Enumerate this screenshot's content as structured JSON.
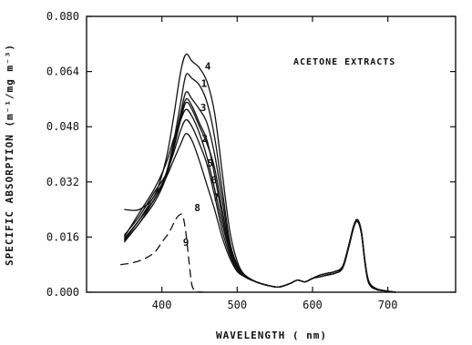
{
  "chart_data": {
    "type": "line",
    "title": "",
    "xlabel": "WAVELENGTH ( nm)",
    "ylabel": "SPECIFIC ABSORPTION (m⁻¹/mg m⁻³)",
    "annotation": "ACETONE EXTRACTS",
    "xlim": [
      300,
      790
    ],
    "ylim": [
      0,
      0.08
    ],
    "x_ticks": [
      400,
      500,
      600,
      700
    ],
    "y_ticks": [
      "0.000",
      "0.016",
      "0.032",
      "0.048",
      "0.064",
      "0.080"
    ],
    "grid": false,
    "series": [
      {
        "name": "1",
        "style": "solid",
        "label_at": [
          452,
          0.0595
        ],
        "points": [
          [
            350,
            0.015
          ],
          [
            370,
            0.021
          ],
          [
            390,
            0.027
          ],
          [
            405,
            0.034
          ],
          [
            415,
            0.043
          ],
          [
            425,
            0.055
          ],
          [
            432,
            0.063
          ],
          [
            440,
            0.062
          ],
          [
            450,
            0.06
          ],
          [
            460,
            0.055
          ],
          [
            470,
            0.045
          ],
          [
            480,
            0.03
          ],
          [
            490,
            0.015
          ],
          [
            500,
            0.008
          ],
          [
            510,
            0.005
          ],
          [
            525,
            0.003
          ],
          [
            540,
            0.002
          ],
          [
            555,
            0.0015
          ],
          [
            570,
            0.0025
          ],
          [
            580,
            0.0035
          ],
          [
            590,
            0.003
          ],
          [
            600,
            0.004
          ],
          [
            610,
            0.0045
          ],
          [
            620,
            0.005
          ],
          [
            630,
            0.0055
          ],
          [
            640,
            0.007
          ],
          [
            648,
            0.013
          ],
          [
            655,
            0.019
          ],
          [
            660,
            0.0205
          ],
          [
            665,
            0.017
          ],
          [
            670,
            0.008
          ],
          [
            675,
            0.0025
          ],
          [
            685,
            0.0008
          ],
          [
            700,
            0.0003
          ],
          [
            710,
            0
          ]
        ]
      },
      {
        "name": "2",
        "style": "solid",
        "label_at": [
          453,
          0.0435
        ],
        "points": [
          [
            350,
            0.016
          ],
          [
            370,
            0.023
          ],
          [
            390,
            0.03
          ],
          [
            405,
            0.037
          ],
          [
            415,
            0.044
          ],
          [
            425,
            0.05
          ],
          [
            432,
            0.053
          ],
          [
            440,
            0.051
          ],
          [
            450,
            0.046
          ],
          [
            460,
            0.039
          ],
          [
            470,
            0.03
          ],
          [
            480,
            0.02
          ],
          [
            490,
            0.012
          ],
          [
            500,
            0.007
          ],
          [
            510,
            0.0045
          ],
          [
            525,
            0.003
          ],
          [
            540,
            0.002
          ],
          [
            555,
            0.0015
          ],
          [
            570,
            0.0025
          ],
          [
            580,
            0.0035
          ],
          [
            590,
            0.003
          ],
          [
            600,
            0.004
          ],
          [
            610,
            0.005
          ],
          [
            620,
            0.0055
          ],
          [
            630,
            0.006
          ],
          [
            640,
            0.0075
          ],
          [
            648,
            0.0135
          ],
          [
            655,
            0.0195
          ],
          [
            660,
            0.021
          ],
          [
            665,
            0.0175
          ],
          [
            670,
            0.0085
          ],
          [
            675,
            0.003
          ],
          [
            685,
            0.001
          ],
          [
            700,
            0.0003
          ],
          [
            710,
            0
          ]
        ]
      },
      {
        "name": "3",
        "style": "solid",
        "label_at": [
          451,
          0.0525
        ],
        "points": [
          [
            350,
            0.0145
          ],
          [
            370,
            0.02
          ],
          [
            390,
            0.026
          ],
          [
            405,
            0.033
          ],
          [
            415,
            0.042
          ],
          [
            425,
            0.052
          ],
          [
            432,
            0.058
          ],
          [
            440,
            0.056
          ],
          [
            450,
            0.053
          ],
          [
            460,
            0.049
          ],
          [
            470,
            0.04
          ],
          [
            480,
            0.027
          ],
          [
            490,
            0.014
          ],
          [
            500,
            0.0075
          ],
          [
            510,
            0.005
          ],
          [
            525,
            0.003
          ],
          [
            540,
            0.002
          ],
          [
            555,
            0.0015
          ],
          [
            570,
            0.0025
          ],
          [
            580,
            0.0035
          ],
          [
            590,
            0.003
          ],
          [
            600,
            0.004
          ],
          [
            610,
            0.0045
          ],
          [
            620,
            0.005
          ],
          [
            630,
            0.0055
          ],
          [
            640,
            0.007
          ],
          [
            648,
            0.013
          ],
          [
            655,
            0.019
          ],
          [
            660,
            0.0205
          ],
          [
            665,
            0.017
          ],
          [
            670,
            0.008
          ],
          [
            675,
            0.0025
          ],
          [
            685,
            0.0008
          ],
          [
            700,
            0.0003
          ],
          [
            710,
            0
          ]
        ]
      },
      {
        "name": "4",
        "style": "solid",
        "label_at": [
          457,
          0.0645
        ],
        "points": [
          [
            350,
            0.024
          ],
          [
            370,
            0.024
          ],
          [
            390,
            0.028
          ],
          [
            405,
            0.038
          ],
          [
            415,
            0.05
          ],
          [
            425,
            0.064
          ],
          [
            432,
            0.069
          ],
          [
            440,
            0.067
          ],
          [
            450,
            0.065
          ],
          [
            460,
            0.061
          ],
          [
            470,
            0.052
          ],
          [
            480,
            0.035
          ],
          [
            490,
            0.018
          ],
          [
            500,
            0.009
          ],
          [
            510,
            0.005
          ],
          [
            525,
            0.003
          ],
          [
            540,
            0.002
          ],
          [
            555,
            0.0015
          ],
          [
            570,
            0.0025
          ],
          [
            580,
            0.0035
          ],
          [
            590,
            0.003
          ],
          [
            600,
            0.004
          ],
          [
            610,
            0.0045
          ],
          [
            620,
            0.005
          ],
          [
            630,
            0.0055
          ],
          [
            640,
            0.007
          ],
          [
            648,
            0.013
          ],
          [
            655,
            0.019
          ],
          [
            660,
            0.0205
          ],
          [
            665,
            0.017
          ],
          [
            670,
            0.008
          ],
          [
            675,
            0.0025
          ],
          [
            685,
            0.0008
          ],
          [
            700,
            0.0003
          ],
          [
            710,
            0
          ]
        ]
      },
      {
        "name": "5",
        "style": "solid",
        "label_at": [
          460,
          0.0365
        ],
        "points": [
          [
            350,
            0.015
          ],
          [
            370,
            0.02
          ],
          [
            390,
            0.027
          ],
          [
            405,
            0.033
          ],
          [
            415,
            0.041
          ],
          [
            425,
            0.05
          ],
          [
            432,
            0.055
          ],
          [
            440,
            0.053
          ],
          [
            450,
            0.048
          ],
          [
            460,
            0.043
          ],
          [
            470,
            0.036
          ],
          [
            480,
            0.024
          ],
          [
            490,
            0.013
          ],
          [
            500,
            0.007
          ],
          [
            510,
            0.0045
          ],
          [
            525,
            0.003
          ],
          [
            540,
            0.002
          ],
          [
            555,
            0.0015
          ],
          [
            570,
            0.0025
          ],
          [
            580,
            0.0035
          ],
          [
            590,
            0.003
          ],
          [
            600,
            0.004
          ],
          [
            610,
            0.0045
          ],
          [
            620,
            0.005
          ],
          [
            630,
            0.0055
          ],
          [
            640,
            0.007
          ],
          [
            648,
            0.013
          ],
          [
            655,
            0.019
          ],
          [
            660,
            0.0205
          ],
          [
            665,
            0.017
          ],
          [
            670,
            0.008
          ],
          [
            675,
            0.0025
          ],
          [
            685,
            0.0008
          ],
          [
            700,
            0.0003
          ],
          [
            710,
            0
          ]
        ]
      },
      {
        "name": "6",
        "style": "solid",
        "label_at": [
          465,
          0.0315
        ],
        "points": [
          [
            350,
            0.0155
          ],
          [
            370,
            0.021
          ],
          [
            390,
            0.027
          ],
          [
            405,
            0.034
          ],
          [
            415,
            0.042
          ],
          [
            425,
            0.051
          ],
          [
            432,
            0.056
          ],
          [
            440,
            0.054
          ],
          [
            450,
            0.049
          ],
          [
            460,
            0.044
          ],
          [
            470,
            0.034
          ],
          [
            480,
            0.022
          ],
          [
            490,
            0.012
          ],
          [
            500,
            0.0065
          ],
          [
            510,
            0.0045
          ],
          [
            525,
            0.003
          ],
          [
            540,
            0.002
          ],
          [
            555,
            0.0015
          ],
          [
            570,
            0.0025
          ],
          [
            580,
            0.0035
          ],
          [
            590,
            0.003
          ],
          [
            600,
            0.004
          ],
          [
            610,
            0.0045
          ],
          [
            620,
            0.005
          ],
          [
            630,
            0.0055
          ],
          [
            640,
            0.007
          ],
          [
            648,
            0.013
          ],
          [
            655,
            0.019
          ],
          [
            660,
            0.0205
          ],
          [
            665,
            0.017
          ],
          [
            670,
            0.008
          ],
          [
            675,
            0.0025
          ],
          [
            685,
            0.0008
          ],
          [
            700,
            0.0003
          ],
          [
            710,
            0
          ]
        ]
      },
      {
        "name": "7",
        "style": "solid",
        "label_at": [
          468,
          0.0265
        ],
        "points": [
          [
            350,
            0.0165
          ],
          [
            370,
            0.022
          ],
          [
            390,
            0.029
          ],
          [
            405,
            0.034
          ],
          [
            415,
            0.04
          ],
          [
            425,
            0.047
          ],
          [
            432,
            0.05
          ],
          [
            440,
            0.048
          ],
          [
            450,
            0.043
          ],
          [
            460,
            0.037
          ],
          [
            470,
            0.028
          ],
          [
            480,
            0.018
          ],
          [
            490,
            0.011
          ],
          [
            500,
            0.0065
          ],
          [
            510,
            0.0045
          ],
          [
            525,
            0.003
          ],
          [
            540,
            0.002
          ],
          [
            555,
            0.0015
          ],
          [
            570,
            0.0025
          ],
          [
            580,
            0.0035
          ],
          [
            590,
            0.003
          ],
          [
            600,
            0.004
          ],
          [
            610,
            0.005
          ],
          [
            620,
            0.0055
          ],
          [
            630,
            0.006
          ],
          [
            640,
            0.0075
          ],
          [
            648,
            0.0135
          ],
          [
            655,
            0.0195
          ],
          [
            660,
            0.021
          ],
          [
            665,
            0.0175
          ],
          [
            670,
            0.0085
          ],
          [
            675,
            0.003
          ],
          [
            685,
            0.001
          ],
          [
            700,
            0.0003
          ],
          [
            710,
            0
          ]
        ]
      },
      {
        "name": "8",
        "style": "solid",
        "label_at": [
          443,
          0.0235
        ],
        "points": [
          [
            350,
            0.0155
          ],
          [
            370,
            0.021
          ],
          [
            390,
            0.028
          ],
          [
            405,
            0.033
          ],
          [
            415,
            0.038
          ],
          [
            425,
            0.043
          ],
          [
            432,
            0.046
          ],
          [
            440,
            0.044
          ],
          [
            450,
            0.038
          ],
          [
            460,
            0.031
          ],
          [
            470,
            0.024
          ],
          [
            480,
            0.016
          ],
          [
            490,
            0.01
          ],
          [
            500,
            0.006
          ],
          [
            510,
            0.0045
          ],
          [
            525,
            0.003
          ],
          [
            540,
            0.002
          ],
          [
            555,
            0.0015
          ],
          [
            570,
            0.0025
          ],
          [
            580,
            0.0035
          ],
          [
            590,
            0.003
          ],
          [
            600,
            0.004
          ],
          [
            610,
            0.005
          ],
          [
            620,
            0.0055
          ],
          [
            630,
            0.006
          ],
          [
            640,
            0.0075
          ],
          [
            648,
            0.0135
          ],
          [
            655,
            0.0195
          ],
          [
            660,
            0.021
          ],
          [
            665,
            0.0175
          ],
          [
            670,
            0.0085
          ],
          [
            675,
            0.003
          ],
          [
            685,
            0.001
          ],
          [
            700,
            0.0003
          ],
          [
            710,
            0
          ]
        ]
      },
      {
        "name": "9",
        "style": "dashed",
        "label_at": [
          428,
          0.0135
        ],
        "points": [
          [
            345,
            0.008
          ],
          [
            360,
            0.0085
          ],
          [
            375,
            0.0095
          ],
          [
            390,
            0.0115
          ],
          [
            400,
            0.0145
          ],
          [
            410,
            0.0175
          ],
          [
            418,
            0.021
          ],
          [
            424,
            0.0225
          ],
          [
            428,
            0.022
          ],
          [
            432,
            0.017
          ],
          [
            436,
            0.009
          ],
          [
            440,
            0.002
          ],
          [
            446,
            0.0003
          ],
          [
            455,
            0
          ]
        ]
      }
    ]
  }
}
